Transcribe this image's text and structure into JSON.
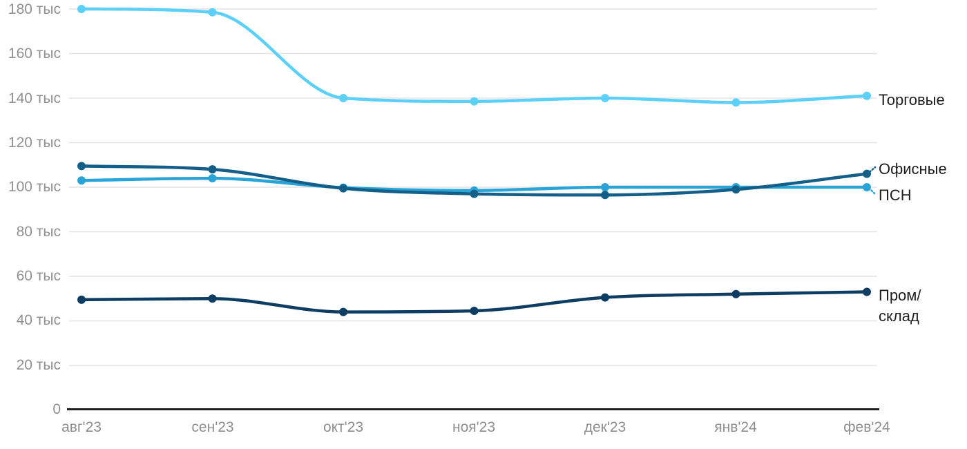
{
  "chart_data": {
    "type": "line",
    "title": "",
    "x_categories": [
      "авг'23",
      "сен'23",
      "окт'23",
      "ноя'23",
      "дек'23",
      "янв'24",
      "фев'24"
    ],
    "y_axis": {
      "unit": "тыс",
      "min": 0,
      "max": 180,
      "tick_step": 20,
      "tick_labels": [
        "0",
        "20 тыс",
        "40 тыс",
        "60 тыс",
        "80 тыс",
        "100 тыс",
        "120 тыс",
        "140 тыс",
        "160 тыс",
        "180 тыс"
      ]
    },
    "grid": true,
    "legend_position": "right-inline-at-line-end",
    "series": [
      {
        "id": "torgovye",
        "name": "Торговые",
        "label_lines": [
          "Торговые"
        ],
        "color": "#5CD0F8",
        "values": [
          180,
          178.5,
          140,
          138.5,
          140,
          138,
          141
        ]
      },
      {
        "id": "psn",
        "name": "ПСН",
        "label_lines": [
          "ПСН"
        ],
        "color": "#2AA4D7",
        "values": [
          103,
          104,
          99.8,
          98.5,
          100,
          100,
          100
        ]
      },
      {
        "id": "ofisnye",
        "name": "Офисные",
        "label_lines": [
          "Офисные"
        ],
        "color": "#135F89",
        "values": [
          109.5,
          108,
          99.5,
          97,
          96.5,
          99,
          106
        ]
      },
      {
        "id": "prom-sklad",
        "name": "Пром/склад",
        "label_lines": [
          "Пром/",
          "склад"
        ],
        "color": "#0D3D63",
        "values": [
          49.5,
          50,
          44,
          44.5,
          50.5,
          52,
          53
        ]
      }
    ],
    "colors": {
      "grid": "#E4E4E4",
      "axis": "#1F1F1F",
      "tick_text": "#909090",
      "legend_text": "#1E1E1E",
      "background": "#FFFFFF"
    }
  }
}
